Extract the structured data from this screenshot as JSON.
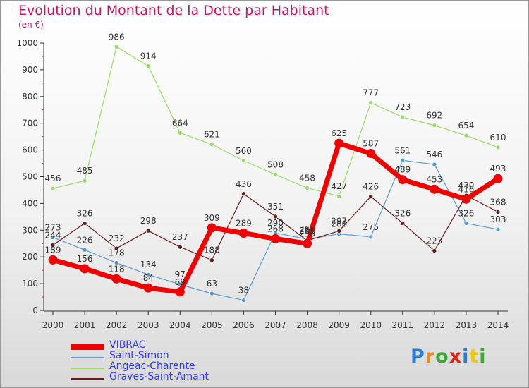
{
  "title": "Evolution du Montant de la Dette par Habitant",
  "subtitle": "(en €)",
  "logo": "Proxiti",
  "chart_data": {
    "type": "line",
    "title": "Evolution du Montant de la Dette par Habitant",
    "subtitle": "(en €)",
    "ylim": [
      0,
      1000
    ],
    "yticks": [
      0,
      100,
      200,
      300,
      400,
      500,
      600,
      700,
      800,
      900,
      1000
    ],
    "x": [
      "2000",
      "2001",
      "2002",
      "2003",
      "2004",
      "2005",
      "2006",
      "2007",
      "2008",
      "2009",
      "2010",
      "2011",
      "2012",
      "2013",
      "2014"
    ],
    "grid": false,
    "legend_position": "bottom-left",
    "series": [
      {
        "name": "VIBRAC",
        "color": "#ee0000",
        "values": [
          189,
          156,
          118,
          84,
          69,
          309,
          289,
          268,
          250,
          625,
          587,
          489,
          453,
          416,
          493
        ]
      },
      {
        "name": "Saint-Simon",
        "color": "#5b9bd5",
        "values": [
          273,
          226,
          178,
          134,
          97,
          63,
          38,
          290,
          266,
          286,
          275,
          561,
          546,
          326,
          303
        ]
      },
      {
        "name": "Angeac-Charente",
        "color": "#99dd66",
        "values": [
          456,
          485,
          986,
          914,
          664,
          621,
          560,
          508,
          458,
          427,
          777,
          723,
          692,
          654,
          610
        ]
      },
      {
        "name": "Graves-Saint-Amant",
        "color": "#6b1a1a",
        "values": [
          244,
          326,
          232,
          298,
          237,
          188,
          436,
          351,
          261,
          297,
          426,
          326,
          223,
          430,
          368
        ]
      }
    ]
  }
}
